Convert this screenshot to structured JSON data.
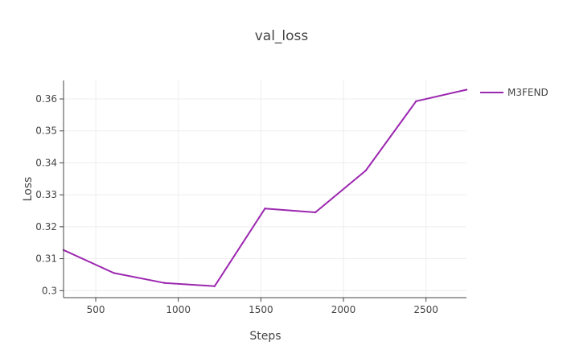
{
  "chart_data": {
    "type": "line",
    "title": "val_loss",
    "xlabel": "Steps",
    "ylabel": "Loss",
    "xlim": [
      305,
      2745
    ],
    "ylim": [
      0.2978,
      0.3658
    ],
    "xticks": [
      500,
      1000,
      1500,
      2000,
      2500
    ],
    "yticks": [
      0.3,
      0.31,
      0.32,
      0.33,
      0.34,
      0.35,
      0.36
    ],
    "ytick_labels": [
      "0.3",
      "0.31",
      "0.32",
      "0.33",
      "0.34",
      "0.35",
      "0.36"
    ],
    "grid": true,
    "legend_position": "top-right",
    "series": [
      {
        "name": "M3FEND",
        "color": "#9c27b0",
        "x": [
          305,
          610,
          915,
          1220,
          1525,
          1830,
          2135,
          2440,
          2745
        ],
        "y": [
          0.3127,
          0.3055,
          0.3024,
          0.3014,
          0.3257,
          0.3245,
          0.3376,
          0.3593,
          0.3629
        ]
      }
    ]
  }
}
